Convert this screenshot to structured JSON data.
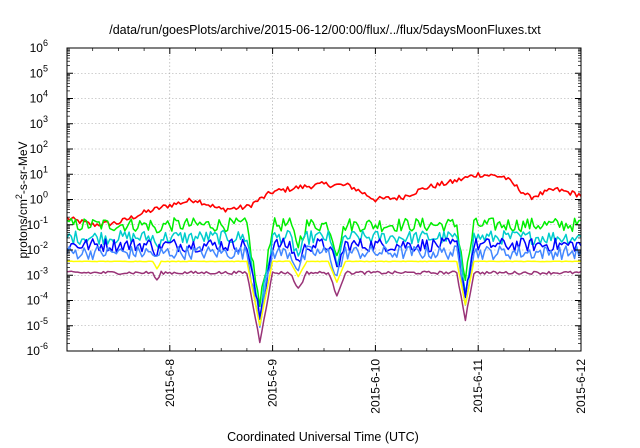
{
  "chart_data": {
    "type": "line",
    "title": "/data/run/goesPlots/archive/2015-06-12/00:00/flux/../flux/5daysMoonFluxes.txt",
    "xlabel": "Coordinated Universal Time (UTC)",
    "ylabel": "protons/cm²-s-sr-MeV",
    "yscale": "log",
    "ylim": [
      1e-06,
      1000000.0
    ],
    "xlim": [
      "2015-06-07 00:00",
      "2015-06-12 00:00"
    ],
    "grid": true,
    "x_ticks": [
      "2015-6-8",
      "2015-6-9",
      "2015-6-10",
      "2015-6-11",
      "2015-6-12"
    ],
    "y_ticks": [
      {
        "base": "10",
        "exp": "-6"
      },
      {
        "base": "10",
        "exp": "-5"
      },
      {
        "base": "10",
        "exp": "-4"
      },
      {
        "base": "10",
        "exp": "-3"
      },
      {
        "base": "10",
        "exp": "-2"
      },
      {
        "base": "10",
        "exp": "-1"
      },
      {
        "base": "10",
        "exp": "0"
      },
      {
        "base": "10",
        "exp": "1"
      },
      {
        "base": "10",
        "exp": "2"
      },
      {
        "base": "10",
        "exp": "3"
      },
      {
        "base": "10",
        "exp": "4"
      },
      {
        "base": "10",
        "exp": "5"
      },
      {
        "base": "10",
        "exp": "6"
      }
    ],
    "series": [
      {
        "color": "#ff0000",
        "base_log": -0.9,
        "x": [
          "2015-06-07 00:00",
          "2015-06-07 06:00",
          "2015-06-07 12:00",
          "2015-06-07 18:00",
          "2015-06-08 00:00",
          "2015-06-08 06:00",
          "2015-06-08 12:00",
          "2015-06-08 18:00",
          "2015-06-09 00:00",
          "2015-06-09 06:00",
          "2015-06-09 12:00",
          "2015-06-09 18:00",
          "2015-06-10 00:00",
          "2015-06-10 06:00",
          "2015-06-10 12:00",
          "2015-06-10 18:00",
          "2015-06-11 00:00",
          "2015-06-11 06:00",
          "2015-06-11 12:00",
          "2015-06-11 18:00",
          "2015-06-12 00:00"
        ],
        "y": [
          0.18,
          0.1,
          0.12,
          0.3,
          0.6,
          1.0,
          0.4,
          0.5,
          2.0,
          3.0,
          4.0,
          3.5,
          1.0,
          1.2,
          3.0,
          5.0,
          10.0,
          8.0,
          1.2,
          2.5,
          1.5
        ]
      },
      {
        "color": "#00ee00",
        "base_log": -1.0,
        "x": [],
        "y": []
      },
      {
        "color": "#00cccc",
        "base_log": -1.5,
        "x": [],
        "y": []
      },
      {
        "color": "#0000ff",
        "base_log": -1.8,
        "x": [],
        "y": []
      },
      {
        "color": "#4488ff",
        "base_log": -2.1,
        "x": [],
        "y": []
      },
      {
        "color": "#ffff00",
        "base_log": -2.45,
        "x": [],
        "y": []
      },
      {
        "color": "#993377",
        "base_log": -2.9,
        "x": [],
        "y": []
      }
    ]
  }
}
